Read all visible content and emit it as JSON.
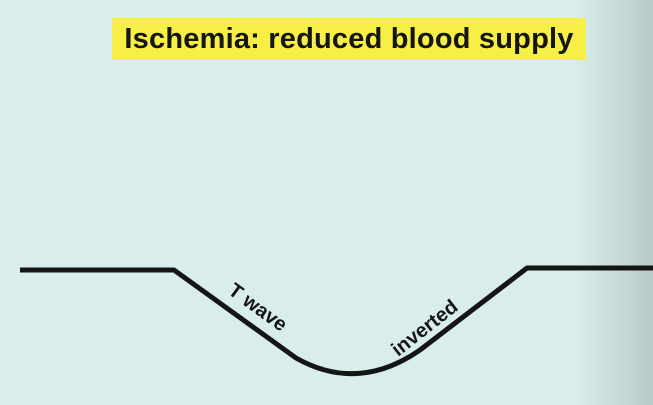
{
  "title": "Ischemia: reduced blood supply",
  "labels": {
    "left": "T wave",
    "right": "inverted"
  },
  "colors": {
    "background": "#d9eeec",
    "title_highlight": "#f7ef45",
    "line": "#151515"
  }
}
